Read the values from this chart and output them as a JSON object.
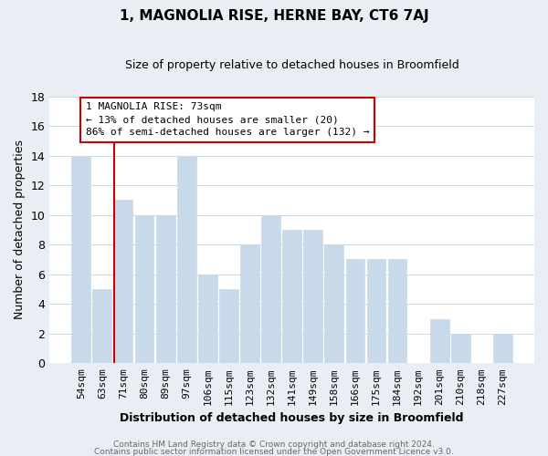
{
  "title": "1, MAGNOLIA RISE, HERNE BAY, CT6 7AJ",
  "subtitle": "Size of property relative to detached houses in Broomfield",
  "xlabel": "Distribution of detached houses by size in Broomfield",
  "ylabel": "Number of detached properties",
  "bar_color": "#c8daea",
  "bar_edge_color": "#c8daea",
  "vline_color": "#cc0000",
  "vline_index": 2,
  "categories": [
    "54sqm",
    "63sqm",
    "71sqm",
    "80sqm",
    "89sqm",
    "97sqm",
    "106sqm",
    "115sqm",
    "123sqm",
    "132sqm",
    "141sqm",
    "149sqm",
    "158sqm",
    "166sqm",
    "175sqm",
    "184sqm",
    "192sqm",
    "201sqm",
    "210sqm",
    "218sqm",
    "227sqm"
  ],
  "values": [
    14,
    5,
    11,
    10,
    10,
    14,
    6,
    5,
    8,
    10,
    9,
    9,
    8,
    7,
    7,
    7,
    0,
    3,
    2,
    0,
    2
  ],
  "ylim": [
    0,
    18
  ],
  "yticks": [
    0,
    2,
    4,
    6,
    8,
    10,
    12,
    14,
    16,
    18
  ],
  "annotation_title": "1 MAGNOLIA RISE: 73sqm",
  "annotation_line1": "← 13% of detached houses are smaller (20)",
  "annotation_line2": "86% of semi-detached houses are larger (132) →",
  "footer1": "Contains HM Land Registry data © Crown copyright and database right 2024.",
  "footer2": "Contains public sector information licensed under the Open Government Licence v3.0.",
  "background_color": "#e8eef4",
  "plot_bg_color": "#ffffff",
  "grid_color": "#c8daea",
  "annot_box_color": "#cc0000",
  "title_fontsize": 11,
  "subtitle_fontsize": 9,
  "tick_fontsize": 8,
  "ylabel_fontsize": 9,
  "xlabel_fontsize": 9,
  "footer_fontsize": 6.5
}
